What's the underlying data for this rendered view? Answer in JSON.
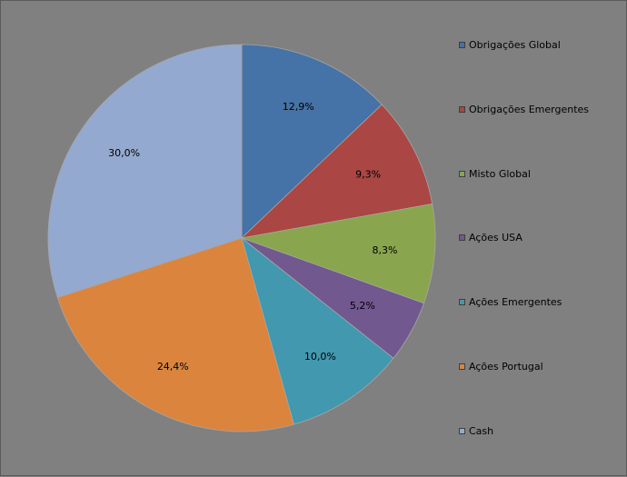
{
  "chart_data": {
    "type": "pie",
    "title": "",
    "categories": [
      "Obrigações Global",
      "Obrigações Emergentes",
      "Misto Global",
      "Ações USA",
      "Ações Emergentes",
      "Ações Portugal",
      "Cash"
    ],
    "values": [
      12.9,
      9.3,
      8.3,
      5.2,
      10.0,
      24.4,
      30.0
    ],
    "labels": [
      "12,9%",
      "9,3%",
      "8,3%",
      "5,2%",
      "10,0%",
      "24,4%",
      "30,0%"
    ],
    "colors": [
      "#4572a7",
      "#aa4643",
      "#89a54e",
      "#71588f",
      "#4198af",
      "#db843d",
      "#93a9cf"
    ],
    "start_angle_deg": 0,
    "direction": "clockwise",
    "legend_position": "right"
  }
}
